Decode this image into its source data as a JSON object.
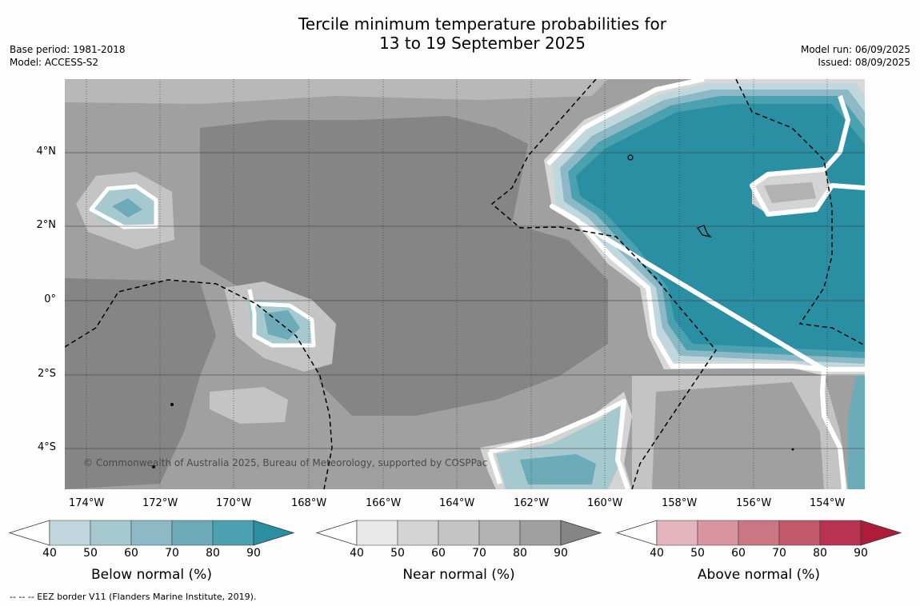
{
  "title": {
    "line1": "Tercile minimum temperature probabilities for",
    "line2": "13 to 19 September 2025"
  },
  "meta_left": {
    "base_period": "Base period: 1981-2018",
    "model": "Model: ACCESS-S2"
  },
  "meta_right": {
    "model_run": "Model run: 06/09/2025",
    "issued": "Issued: 08/09/2025"
  },
  "map": {
    "x_ticks": [
      "174°W",
      "172°W",
      "170°W",
      "168°W",
      "166°W",
      "164°W",
      "162°W",
      "160°W",
      "158°W",
      "156°W",
      "154°W"
    ],
    "y_ticks": [
      "4°N",
      "2°N",
      "0°",
      "2°S",
      "4°S"
    ],
    "copyright": "© Commonwealth of Australia 2025, Bureau of Meteorology, supported by COSPPac"
  },
  "colorbars": [
    {
      "label": "Below normal (%)",
      "ticks": [
        "40",
        "50",
        "60",
        "70",
        "80",
        "90"
      ],
      "colors": [
        "#bfd7dd",
        "#a6c8cf",
        "#8cb9c5",
        "#6dabb9",
        "#4ba1b0",
        "#2b8fa3"
      ]
    },
    {
      "label": "Near normal (%)",
      "ticks": [
        "40",
        "50",
        "60",
        "70",
        "80",
        "90"
      ],
      "colors": [
        "#e8e8e8",
        "#d4d4d4",
        "#c4c4c4",
        "#b2b2b2",
        "#a0a0a0",
        "#858585"
      ]
    },
    {
      "label": "Above normal (%)",
      "ticks": [
        "40",
        "50",
        "60",
        "70",
        "80",
        "90"
      ],
      "colors": [
        "#e4b5be",
        "#d8949f",
        "#cb7683",
        "#c25a6b",
        "#b83350",
        "#ae1c3a"
      ]
    }
  ],
  "footnote": "--  --  -- EEZ border V11 (Flanders Marine Institute, 2019)."
}
